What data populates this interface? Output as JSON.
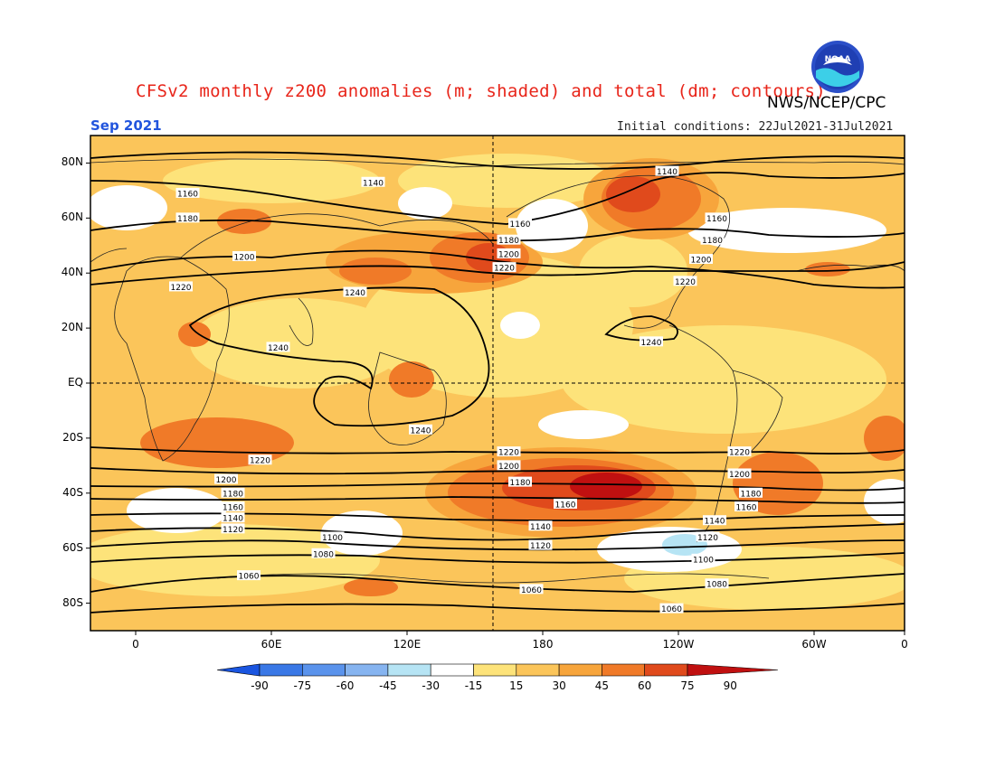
{
  "header": {
    "title": "CFSv2 monthly z200 anomalies (m; shaded) and total (dm; contours)",
    "agency": "NWS/NCEP/CPC",
    "month": "Sep 2021",
    "initial_conditions": "Initial conditions: 22Jul2021-31Jul2021",
    "logo_text": "NOAA"
  },
  "map": {
    "lat_labels": [
      "80N",
      "60N",
      "40N",
      "20N",
      "EQ",
      "20S",
      "40S",
      "60S",
      "80S"
    ],
    "lon_labels": [
      "0",
      "60E",
      "120E",
      "180",
      "120W",
      "60W",
      "0"
    ],
    "contour_labels": [
      {
        "text": "1140",
        "lon": 105,
        "lat": 73
      },
      {
        "text": "1140",
        "lon": -125,
        "lat": 77
      },
      {
        "text": "1160",
        "lon": 23,
        "lat": 69
      },
      {
        "text": "1160",
        "lon": 170,
        "lat": 58
      },
      {
        "text": "1160",
        "lon": -103,
        "lat": 60
      },
      {
        "text": "1180",
        "lon": 23,
        "lat": 60
      },
      {
        "text": "1180",
        "lon": 165,
        "lat": 52
      },
      {
        "text": "1180",
        "lon": -105,
        "lat": 52
      },
      {
        "text": "1200",
        "lon": 48,
        "lat": 46
      },
      {
        "text": "1200",
        "lon": 165,
        "lat": 47
      },
      {
        "text": "1200",
        "lon": -110,
        "lat": 45
      },
      {
        "text": "1220",
        "lon": 20,
        "lat": 35
      },
      {
        "text": "1220",
        "lon": 163,
        "lat": 42
      },
      {
        "text": "1220",
        "lon": -117,
        "lat": 37
      },
      {
        "text": "1240",
        "lon": 97,
        "lat": 33
      },
      {
        "text": "1240",
        "lon": 63,
        "lat": 13
      },
      {
        "text": "1240",
        "lon": -132,
        "lat": 15
      },
      {
        "text": "1240",
        "lon": 126,
        "lat": -17
      },
      {
        "text": "1220",
        "lon": 55,
        "lat": -28
      },
      {
        "text": "1220",
        "lon": 165,
        "lat": -25
      },
      {
        "text": "1220",
        "lon": -93,
        "lat": -25
      },
      {
        "text": "1200",
        "lon": 40,
        "lat": -35
      },
      {
        "text": "1200",
        "lon": 165,
        "lat": -30
      },
      {
        "text": "1200",
        "lon": -93,
        "lat": -33
      },
      {
        "text": "1180",
        "lon": 43,
        "lat": -40
      },
      {
        "text": "1180",
        "lon": 170,
        "lat": -36
      },
      {
        "text": "1180",
        "lon": -88,
        "lat": -40
      },
      {
        "text": "1160",
        "lon": 43,
        "lat": -45
      },
      {
        "text": "1160",
        "lon": -170,
        "lat": -44
      },
      {
        "text": "1160",
        "lon": -90,
        "lat": -45
      },
      {
        "text": "1140",
        "lon": 43,
        "lat": -49
      },
      {
        "text": "1140",
        "lon": 179,
        "lat": -52
      },
      {
        "text": "1140",
        "lon": -104,
        "lat": -50
      },
      {
        "text": "1120",
        "lon": 43,
        "lat": -53
      },
      {
        "text": "1120",
        "lon": 179,
        "lat": -59
      },
      {
        "text": "1120",
        "lon": -107,
        "lat": -56
      },
      {
        "text": "1100",
        "lon": 87,
        "lat": -56
      },
      {
        "text": "1100",
        "lon": -109,
        "lat": -64
      },
      {
        "text": "1080",
        "lon": 83,
        "lat": -62
      },
      {
        "text": "1080",
        "lon": -103,
        "lat": -73
      },
      {
        "text": "1060",
        "lon": 50,
        "lat": -70
      },
      {
        "text": "1060",
        "lon": 175,
        "lat": -75
      },
      {
        "text": "1060",
        "lon": -123,
        "lat": -82
      }
    ]
  },
  "colorbar": {
    "labels": [
      "-90",
      "-75",
      "-60",
      "-45",
      "-30",
      "-15",
      "15",
      "30",
      "45",
      "60",
      "75",
      "90"
    ],
    "colors": [
      "#1a55e0",
      "#3a78e6",
      "#5a93ec",
      "#86b4f0",
      "#b6e4f4",
      "#ffffff",
      "#fde37a",
      "#fbc55a",
      "#f7a53c",
      "#f07a28",
      "#e04a1c",
      "#c01010"
    ]
  }
}
